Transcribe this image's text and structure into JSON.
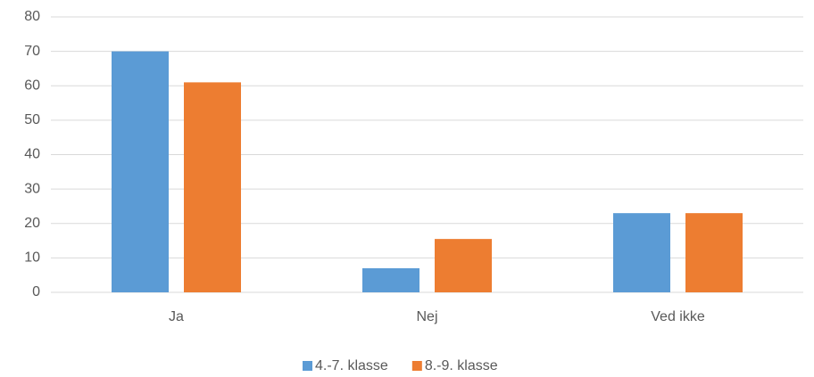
{
  "chart_data": {
    "type": "bar",
    "categories": [
      "Ja",
      "Nej",
      "Ved ikke"
    ],
    "series": [
      {
        "name": "4.-7. klasse",
        "color": "#5b9bd5",
        "values": [
          70,
          7,
          23
        ]
      },
      {
        "name": "8.-9. klasse",
        "color": "#ed7d31",
        "values": [
          61,
          15.5,
          23
        ]
      }
    ],
    "ylim": [
      0,
      80
    ],
    "yticks": [
      0,
      10,
      20,
      30,
      40,
      50,
      60,
      70,
      80
    ],
    "grid": true,
    "legend": "bottom"
  }
}
